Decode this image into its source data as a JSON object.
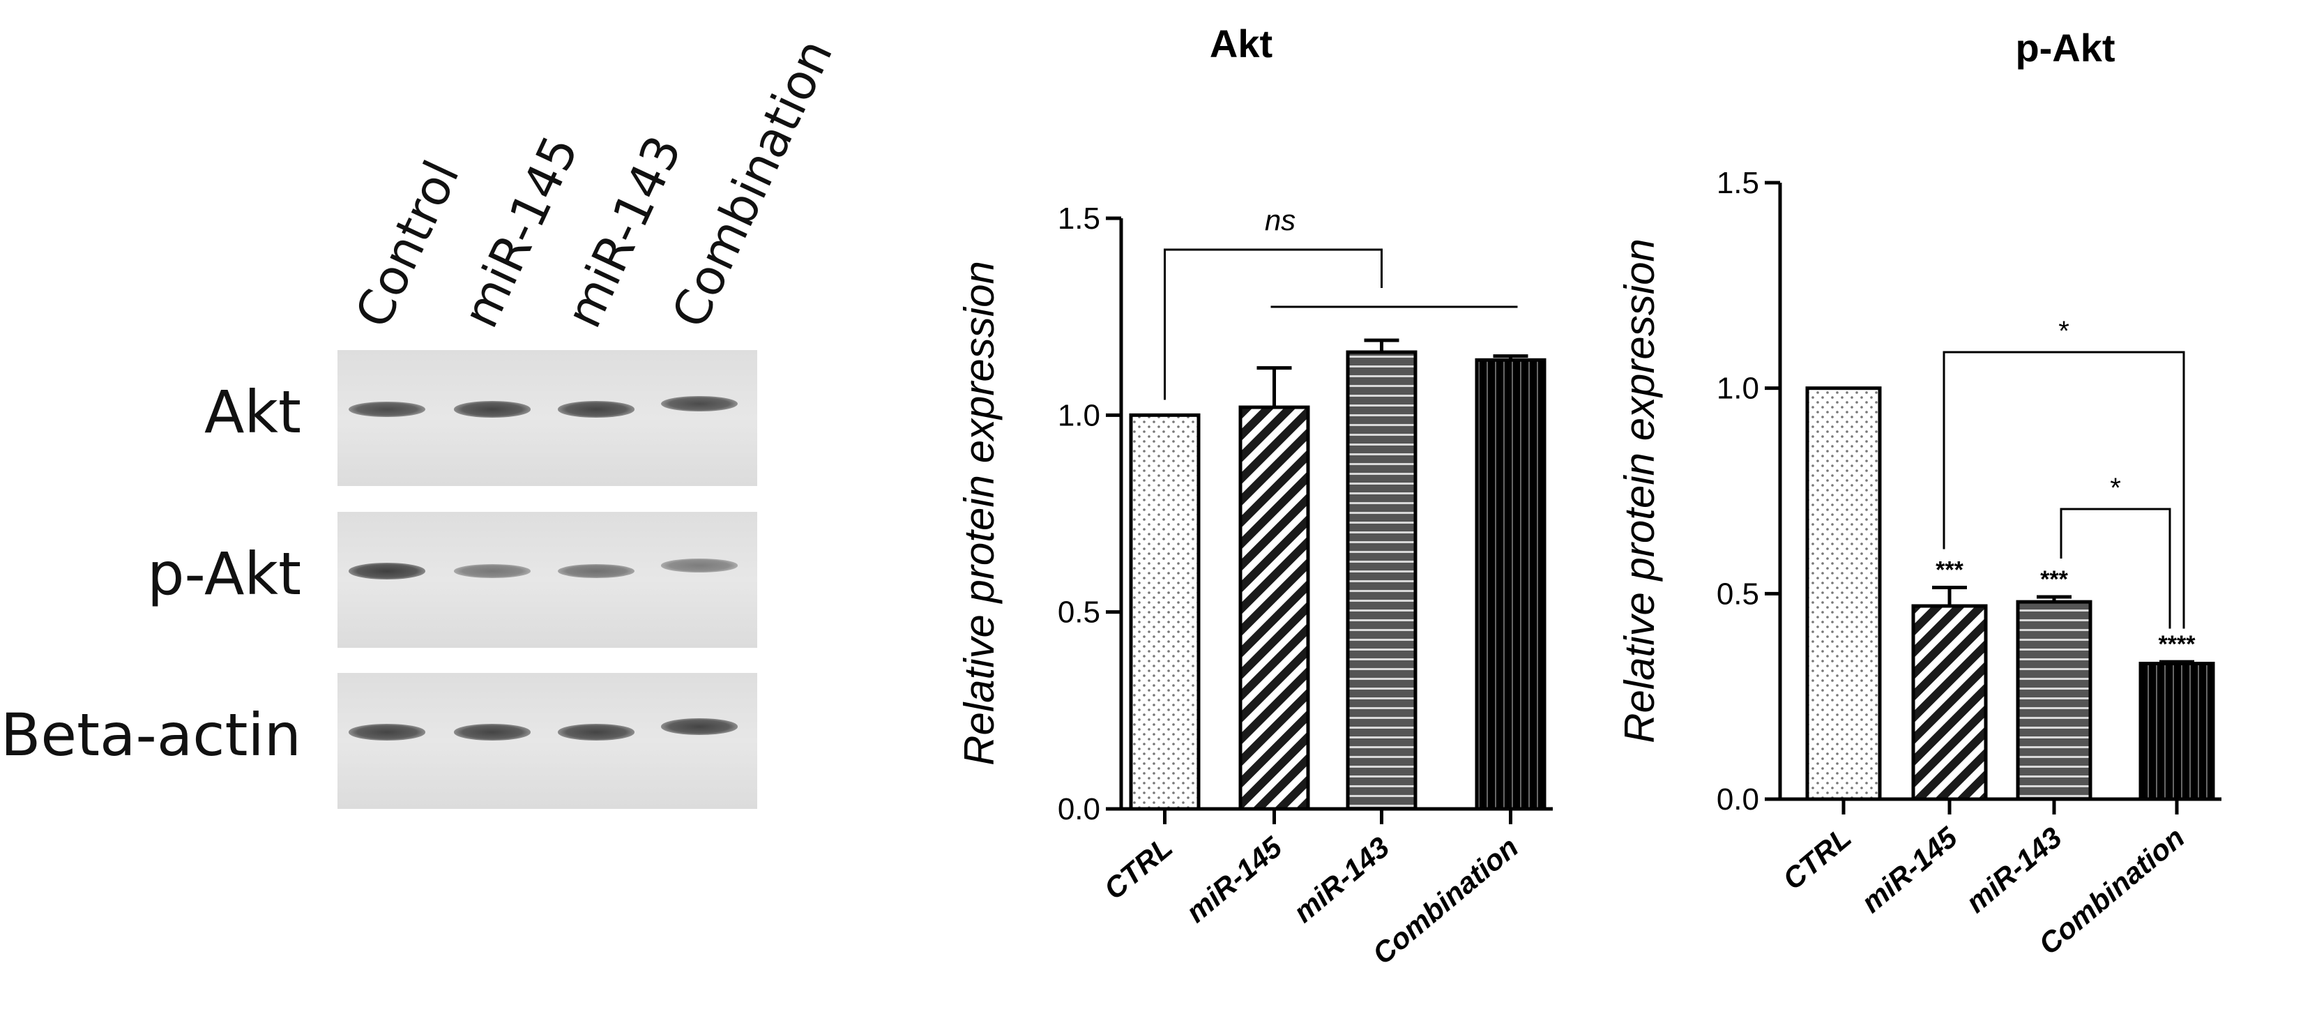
{
  "blot": {
    "lanes": [
      "Control",
      "miR-145",
      "miR-143",
      "Combination"
    ],
    "rows": [
      {
        "label": "Akt",
        "intensity": [
          0.85,
          0.9,
          0.9,
          0.85
        ]
      },
      {
        "label": "p-Akt",
        "intensity": [
          0.95,
          0.45,
          0.5,
          0.4
        ]
      },
      {
        "label": "Beta-actin",
        "intensity": [
          0.9,
          0.9,
          0.9,
          0.9
        ]
      }
    ]
  },
  "chart_data": [
    {
      "type": "bar",
      "title": "Akt",
      "ylabel": "Relative protein expression",
      "xlabel": "",
      "categories": [
        "CTRL",
        "miR-145",
        "miR-143",
        "Combination"
      ],
      "values": [
        1.0,
        1.02,
        1.16,
        1.14
      ],
      "errors": [
        0.0,
        0.1,
        0.03,
        0.01
      ],
      "ylim": [
        0,
        1.5
      ],
      "yticks": [
        "0.0",
        "0.5",
        "1.0",
        "1.5"
      ],
      "patterns": [
        "dots",
        "diagonal",
        "horizontal",
        "vertical"
      ],
      "significance": [
        {
          "label": "ns",
          "from": 0,
          "to": "1-3"
        }
      ],
      "bar_marks": [
        "",
        "",
        "",
        ""
      ]
    },
    {
      "type": "bar",
      "title": "p-Akt",
      "ylabel": "Relative protein expression",
      "xlabel": "",
      "categories": [
        "CTRL",
        "miR-145",
        "miR-143",
        "Combination"
      ],
      "values": [
        1.0,
        0.47,
        0.48,
        0.33
      ],
      "errors": [
        0.0,
        0.045,
        0.012,
        0.004
      ],
      "ylim": [
        0,
        1.5
      ],
      "yticks": [
        "0.0",
        "0.5",
        "1.0",
        "1.5"
      ],
      "patterns": [
        "dots",
        "diagonal",
        "horizontal",
        "vertical"
      ],
      "significance": [
        {
          "label": "*",
          "from": 1,
          "to": 3
        },
        {
          "label": "*",
          "from": 2,
          "to": 3
        }
      ],
      "bar_marks": [
        "",
        "***",
        "***",
        "****"
      ]
    }
  ]
}
